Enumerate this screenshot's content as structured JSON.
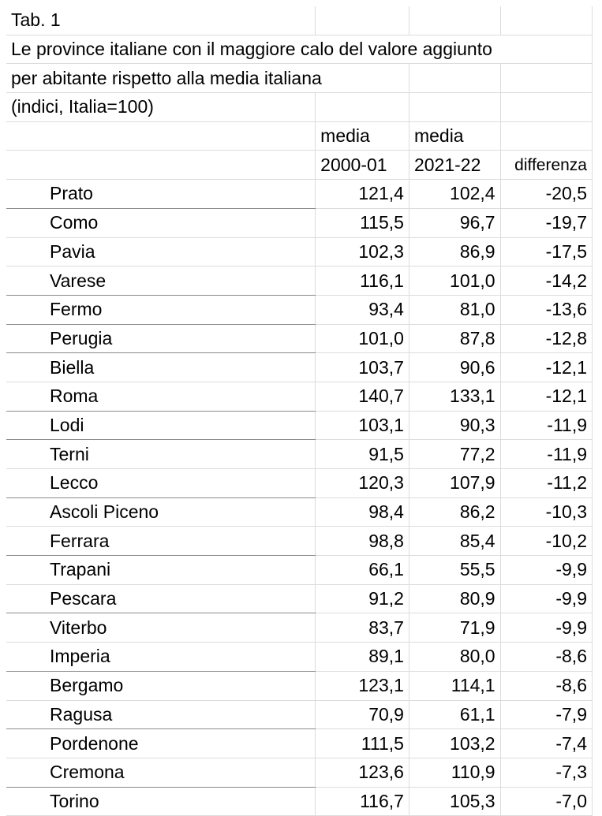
{
  "title": "Tab. 1",
  "subtitle_line1": "Le province italiane con il maggiore calo del valore aggiunto",
  "subtitle_line2": "per abitante rispetto alla media italiana",
  "subtitle_line3": "(indici, Italia=100)",
  "columns": {
    "col1_top": "media",
    "col1_bottom": "2000-01",
    "col2_top": "media",
    "col2_bottom": "2021-22",
    "col3": "differenza"
  },
  "rows": [
    {
      "name": "Prato",
      "v2000": "121,4",
      "v2021": "102,4",
      "diff": "-20,5"
    },
    {
      "name": "Como",
      "v2000": "115,5",
      "v2021": "96,7",
      "diff": "-19,7"
    },
    {
      "name": "Pavia",
      "v2000": "102,3",
      "v2021": "86,9",
      "diff": "-17,5"
    },
    {
      "name": "Varese",
      "v2000": "116,1",
      "v2021": "101,0",
      "diff": "-14,2"
    },
    {
      "name": "Fermo",
      "v2000": "93,4",
      "v2021": "81,0",
      "diff": "-13,6"
    },
    {
      "name": "Perugia",
      "v2000": "101,0",
      "v2021": "87,8",
      "diff": "-12,8"
    },
    {
      "name": "Biella",
      "v2000": "103,7",
      "v2021": "90,6",
      "diff": "-12,1"
    },
    {
      "name": "Roma",
      "v2000": "140,7",
      "v2021": "133,1",
      "diff": "-12,1"
    },
    {
      "name": "Lodi",
      "v2000": "103,1",
      "v2021": "90,3",
      "diff": "-11,9"
    },
    {
      "name": "Terni",
      "v2000": "91,5",
      "v2021": "77,2",
      "diff": "-11,9"
    },
    {
      "name": "Lecco",
      "v2000": "120,3",
      "v2021": "107,9",
      "diff": "-11,2"
    },
    {
      "name": "Ascoli Piceno",
      "v2000": "98,4",
      "v2021": "86,2",
      "diff": "-10,3"
    },
    {
      "name": "Ferrara",
      "v2000": "98,8",
      "v2021": "85,4",
      "diff": "-10,2"
    },
    {
      "name": "Trapani",
      "v2000": "66,1",
      "v2021": "55,5",
      "diff": "-9,9"
    },
    {
      "name": "Pescara",
      "v2000": "91,2",
      "v2021": "80,9",
      "diff": "-9,9"
    },
    {
      "name": "Viterbo",
      "v2000": "83,7",
      "v2021": "71,9",
      "diff": "-9,9"
    },
    {
      "name": "Imperia",
      "v2000": "89,1",
      "v2021": "80,0",
      "diff": "-8,6"
    },
    {
      "name": "Bergamo",
      "v2000": "123,1",
      "v2021": "114,1",
      "diff": "-8,6"
    },
    {
      "name": "Ragusa",
      "v2000": "70,9",
      "v2021": "61,1",
      "diff": "-7,9"
    },
    {
      "name": "Pordenone",
      "v2000": "111,5",
      "v2021": "103,2",
      "diff": "-7,4"
    },
    {
      "name": "Cremona",
      "v2000": "123,6",
      "v2021": "110,9",
      "diff": "-7,3"
    },
    {
      "name": "Torino",
      "v2000": "116,7",
      "v2021": "105,3",
      "diff": "-7,0"
    }
  ]
}
